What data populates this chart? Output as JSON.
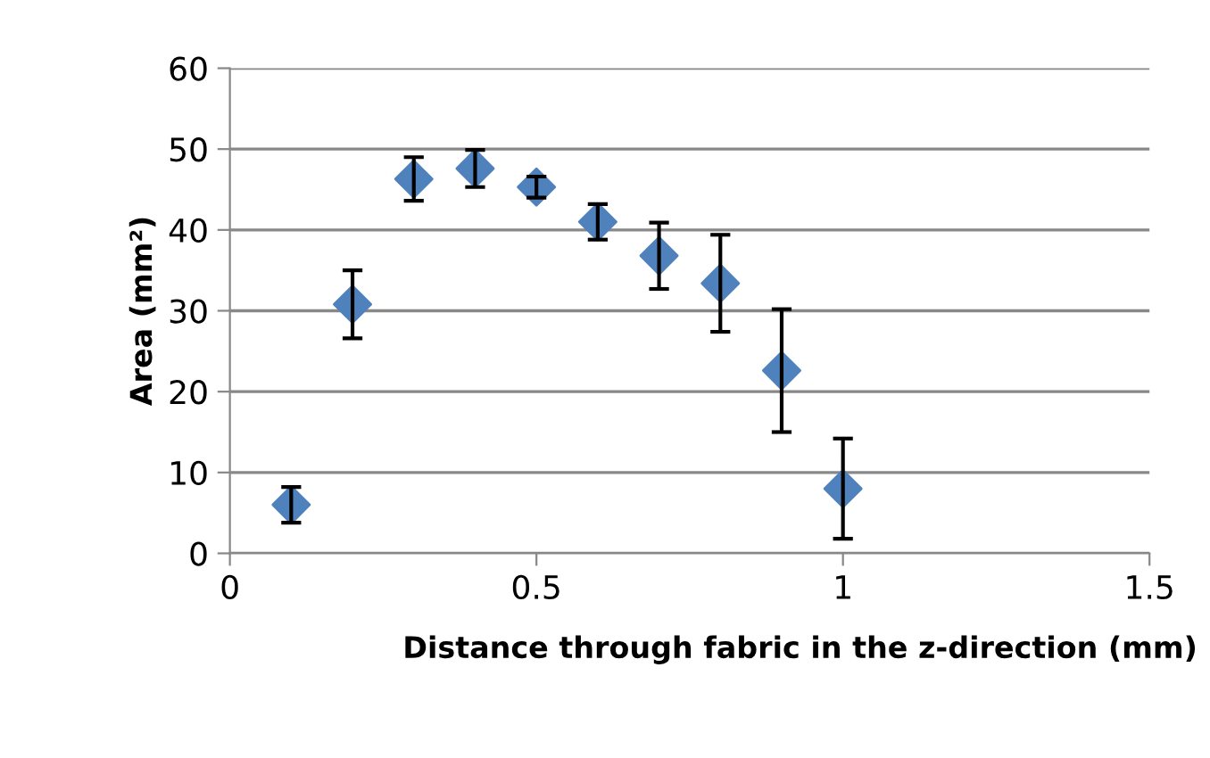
{
  "chart_data": {
    "type": "scatter",
    "xlabel": "Distance through fabric in the z-direction (mm)",
    "ylabel": "Area (mm²)",
    "x": [
      0.1,
      0.2,
      0.3,
      0.4,
      0.5,
      0.6,
      0.7,
      0.8,
      0.9,
      1.0
    ],
    "series": [
      {
        "color": "#4f81bd",
        "values": [
          6.0,
          30.8,
          46.3,
          47.6,
          45.3,
          41.0,
          36.8,
          33.4,
          22.6,
          8.0
        ],
        "errors": [
          2.2,
          4.2,
          2.7,
          2.3,
          1.3,
          2.2,
          4.1,
          6.0,
          7.6,
          6.2
        ]
      }
    ],
    "marker": "diamond",
    "xlim": [
      0,
      1.5
    ],
    "xticks": [
      0,
      0.5,
      1,
      1.5
    ],
    "ylim": [
      0,
      60
    ],
    "yticks": [
      0,
      10,
      20,
      30,
      40,
      50,
      60
    ],
    "grid": "y",
    "legend": false
  }
}
